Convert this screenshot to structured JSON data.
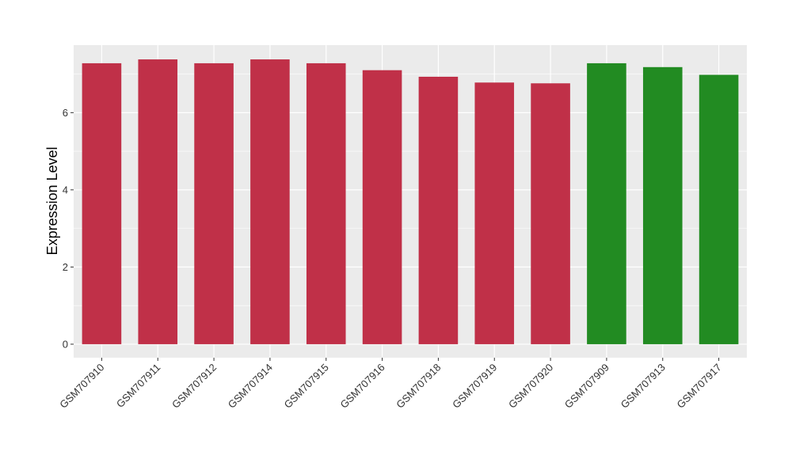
{
  "chart_data": {
    "type": "bar",
    "title": "",
    "xlabel": "",
    "ylabel": "Expression Level",
    "categories": [
      "GSM707910",
      "GSM707911",
      "GSM707912",
      "GSM707914",
      "GSM707915",
      "GSM707916",
      "GSM707918",
      "GSM707919",
      "GSM707920",
      "GSM707909",
      "GSM707913",
      "GSM707917"
    ],
    "values": [
      7.28,
      7.38,
      7.28,
      7.38,
      7.28,
      7.1,
      6.93,
      6.78,
      6.76,
      7.28,
      7.18,
      6.98
    ],
    "bar_colors": [
      "#C03048",
      "#C03048",
      "#C03048",
      "#C03048",
      "#C03048",
      "#C03048",
      "#C03048",
      "#C03048",
      "#C03048",
      "#228B22",
      "#228B22",
      "#228B22"
    ],
    "ylim": [
      -0.35,
      7.75
    ],
    "yticks": [
      0,
      2,
      4,
      6
    ],
    "grid": true,
    "panel_background": "#EBEBEB",
    "grid_color": "#FFFFFF"
  }
}
